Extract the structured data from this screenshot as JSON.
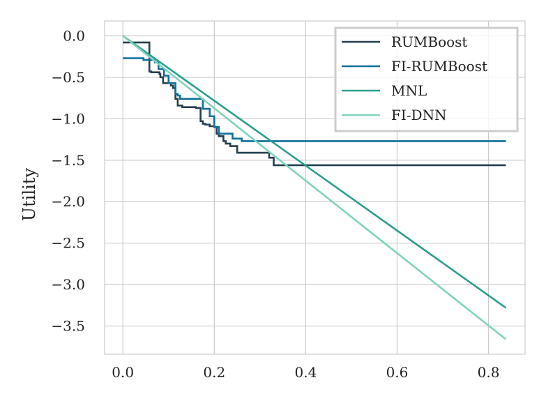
{
  "chart_data": {
    "type": "line",
    "title": "",
    "xlabel": "",
    "ylabel": "Utility",
    "xlim": [
      -0.04,
      0.88
    ],
    "ylim": [
      -3.84,
      0.18
    ],
    "grid": true,
    "legend_position": "top-right",
    "x_ticks": [
      0.0,
      0.2,
      0.4,
      0.6,
      0.8
    ],
    "x_tick_labels": [
      "0.0",
      "0.2",
      "0.4",
      "0.6",
      "0.8"
    ],
    "y_ticks": [
      0.0,
      -0.5,
      -1.0,
      -1.5,
      -2.0,
      -2.5,
      -3.0,
      -3.5
    ],
    "y_tick_labels": [
      "0.0",
      "−0.5",
      "−1.0",
      "−1.5",
      "−2.0",
      "−2.5",
      "−3.0",
      "−3.5"
    ],
    "series": [
      {
        "name": "RUMBoost",
        "color": "#243f4d",
        "step": true,
        "x": [
          0.0,
          0.058,
          0.062,
          0.08,
          0.082,
          0.088,
          0.105,
          0.11,
          0.115,
          0.12,
          0.13,
          0.16,
          0.17,
          0.175,
          0.18,
          0.19,
          0.2,
          0.205,
          0.21,
          0.22,
          0.225,
          0.235,
          0.25,
          0.26,
          0.32,
          0.33,
          0.34,
          0.838
        ],
        "y": [
          -0.08,
          -0.43,
          -0.44,
          -0.46,
          -0.5,
          -0.57,
          -0.6,
          -0.63,
          -0.76,
          -0.84,
          -0.86,
          -0.87,
          -1.03,
          -1.06,
          -1.07,
          -1.09,
          -1.1,
          -1.18,
          -1.21,
          -1.27,
          -1.3,
          -1.33,
          -1.41,
          -1.41,
          -1.47,
          -1.56,
          -1.56,
          -1.56
        ]
      },
      {
        "name": "FI-RUMBoost",
        "color": "#0f6f97",
        "step": true,
        "x": [
          0.0,
          0.002,
          0.045,
          0.07,
          0.078,
          0.09,
          0.1,
          0.115,
          0.12,
          0.125,
          0.175,
          0.19,
          0.2,
          0.21,
          0.24,
          0.26,
          0.27,
          0.838
        ],
        "y": [
          -0.27,
          -0.27,
          -0.29,
          -0.32,
          -0.4,
          -0.48,
          -0.57,
          -0.7,
          -0.72,
          -0.76,
          -0.88,
          -0.97,
          -1.1,
          -1.18,
          -1.24,
          -1.27,
          -1.27,
          -1.27
        ]
      },
      {
        "name": "MNL",
        "color": "#2b9e8b",
        "step": false,
        "x": [
          0.0,
          0.838
        ],
        "y": [
          0.0,
          -3.28
        ]
      },
      {
        "name": "FI-DNN",
        "color": "#7fd3be",
        "step": false,
        "x": [
          0.0,
          0.838
        ],
        "y": [
          0.0,
          -3.66
        ]
      }
    ]
  }
}
